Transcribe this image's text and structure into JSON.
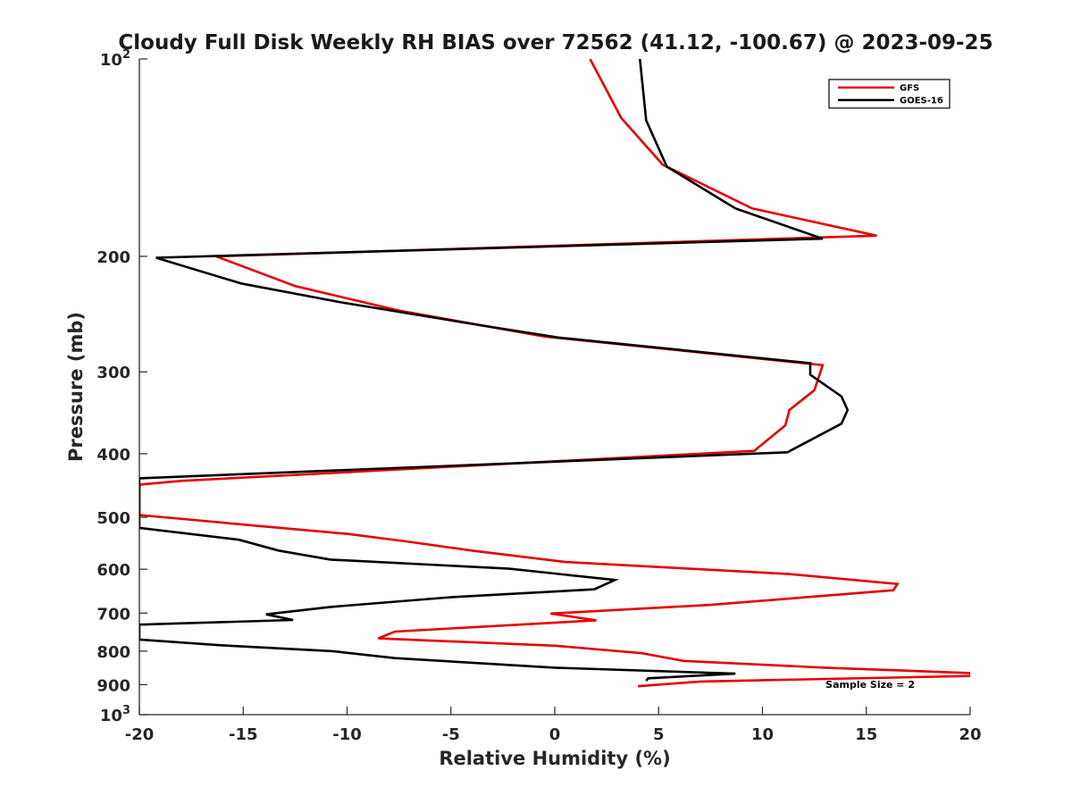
{
  "chart_data": {
    "type": "line",
    "title": "Cloudy Full Disk Weekly RH BIAS over 72562 (41.12, -100.67) @ 2023-09-25",
    "xlabel": "Relative Humidity (%)",
    "ylabel": "Pressure (mb)",
    "xlim": [
      -20,
      20
    ],
    "ylim": [
      100,
      1000
    ],
    "y_scale": "log",
    "y_reversed": true,
    "grid": false,
    "legend_position": "top-right",
    "x_ticks": [
      {
        "value": -20,
        "label": "-20"
      },
      {
        "value": -15,
        "label": "-15"
      },
      {
        "value": -10,
        "label": "-10"
      },
      {
        "value": -5,
        "label": "-5"
      },
      {
        "value": 0,
        "label": "0"
      },
      {
        "value": 5,
        "label": "5"
      },
      {
        "value": 10,
        "label": "10"
      },
      {
        "value": 15,
        "label": "15"
      },
      {
        "value": 20,
        "label": "20"
      }
    ],
    "y_ticks": [
      {
        "value": 100,
        "label": "10",
        "exp": "2"
      },
      {
        "value": 200,
        "label": "200"
      },
      {
        "value": 300,
        "label": "300"
      },
      {
        "value": 400,
        "label": "400"
      },
      {
        "value": 500,
        "label": "500"
      },
      {
        "value": 600,
        "label": "600"
      },
      {
        "value": 700,
        "label": "700"
      },
      {
        "value": 800,
        "label": "800"
      },
      {
        "value": 900,
        "label": "900"
      },
      {
        "value": 1000,
        "label": "10",
        "exp": "3"
      }
    ],
    "series": [
      {
        "name": "GFS",
        "color": "#e60000",
        "points": [
          [
            1.7,
            100
          ],
          [
            3.2,
            123
          ],
          [
            5.2,
            145
          ],
          [
            9.5,
            169
          ],
          [
            15.5,
            186
          ],
          [
            -16.3,
            200
          ],
          [
            -12.5,
            222
          ],
          [
            -7.5,
            242
          ],
          [
            -0.5,
            265
          ],
          [
            12.9,
            293
          ],
          [
            12.5,
            320
          ],
          [
            11.3,
            343
          ],
          [
            11.1,
            362
          ],
          [
            9.6,
            396
          ],
          [
            -18,
            440
          ],
          [
            -20,
            446
          ],
          [
            -20,
            496
          ],
          [
            -15,
            513
          ],
          [
            -10,
            530
          ],
          [
            -7,
            545
          ],
          [
            -4,
            562
          ],
          [
            0.5,
            585
          ],
          [
            11.2,
            610
          ],
          [
            16.5,
            632
          ],
          [
            16.3,
            646
          ],
          [
            7.5,
            680
          ],
          [
            -0.2,
            701
          ],
          [
            2,
            718
          ],
          [
            -7.7,
            747
          ],
          [
            -8.5,
            765
          ],
          [
            0,
            785
          ],
          [
            4.2,
            806
          ],
          [
            6.2,
            828
          ],
          [
            13,
            848
          ],
          [
            20,
            864
          ],
          [
            20,
            873
          ],
          [
            7,
            890
          ],
          [
            4,
            905
          ]
        ]
      },
      {
        "name": "GOES-16",
        "color": "#000000",
        "points": [
          [
            4.1,
            100
          ],
          [
            4.4,
            124
          ],
          [
            5.4,
            146
          ],
          [
            8.7,
            169
          ],
          [
            12.9,
            188
          ],
          [
            -19.2,
            201
          ],
          [
            -15.1,
            220
          ],
          [
            -10.3,
            235
          ],
          [
            -3.5,
            255
          ],
          [
            0.2,
            266
          ],
          [
            12.3,
            291
          ],
          [
            12.3,
            303
          ],
          [
            13.8,
            327
          ],
          [
            14.1,
            343
          ],
          [
            13.8,
            360
          ],
          [
            11.2,
            398
          ],
          [
            -20,
            436
          ],
          [
            -20,
            519
          ],
          [
            -15.2,
            541
          ],
          [
            -13.3,
            562
          ],
          [
            -10.8,
            580
          ],
          [
            -2.2,
            599
          ],
          [
            2.9,
            623
          ],
          [
            1.9,
            644
          ],
          [
            -5,
            662
          ],
          [
            -10.8,
            685
          ],
          [
            -13.9,
            703
          ],
          [
            -12.6,
            717
          ],
          [
            -20,
            729
          ],
          [
            -20,
            768
          ],
          [
            -16,
            784
          ],
          [
            -10.7,
            800
          ],
          [
            -7.7,
            820
          ],
          [
            0,
            848
          ],
          [
            8.7,
            866
          ],
          [
            4.5,
            880
          ],
          [
            4.4,
            888
          ]
        ]
      }
    ],
    "annotations": [
      {
        "text": "Sample Size = 2"
      }
    ]
  }
}
